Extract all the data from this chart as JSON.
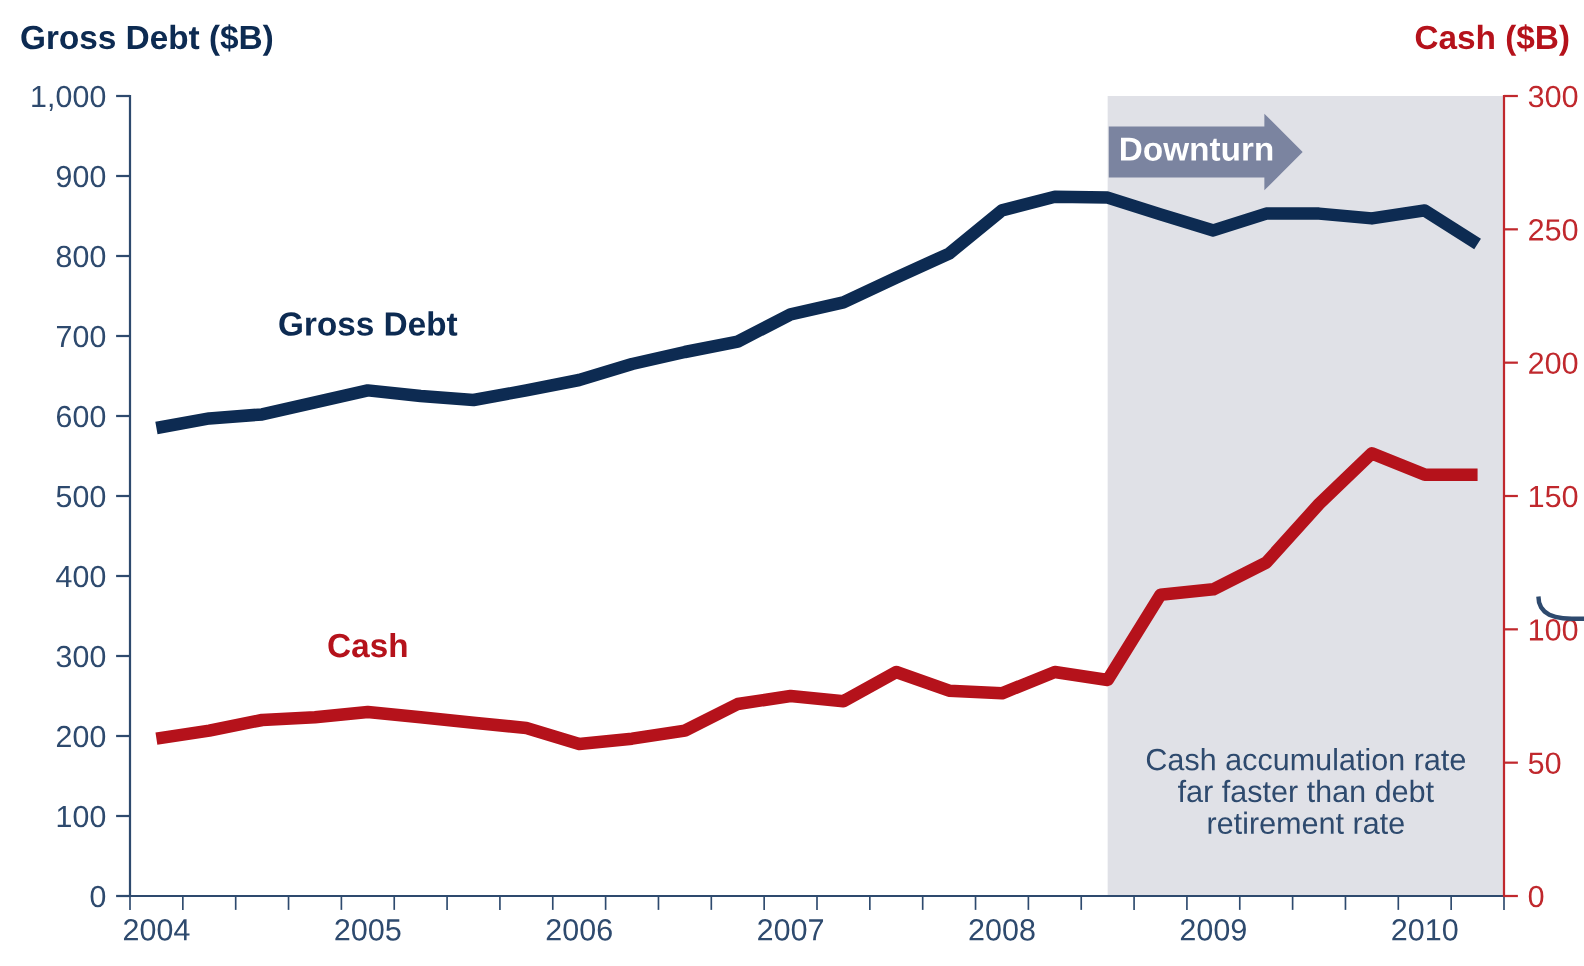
{
  "chart_data": {
    "type": "line",
    "ylabel": "Gross Debt ($B)",
    "y2label": "Cash ($B)",
    "x": [
      2004,
      2004.25,
      2004.5,
      2004.75,
      2005,
      2005.25,
      2005.5,
      2005.75,
      2006,
      2006.25,
      2006.5,
      2006.75,
      2007,
      2007.25,
      2007.5,
      2007.75,
      2008,
      2008.25,
      2008.5,
      2008.75,
      2009,
      2009.25,
      2009.5,
      2009.75,
      2010,
      2010.25
    ],
    "series": [
      {
        "name": "Gross Debt",
        "color": "#0d2b52",
        "values": [
          585,
          597,
          602,
          617,
          632,
          625,
          620,
          632,
          645,
          665,
          680,
          693,
          727,
          742,
          773,
          803,
          857,
          874,
          873,
          852,
          832,
          853,
          853,
          847,
          857,
          815
        ]
      },
      {
        "name": "Cash",
        "color": "#b5121b",
        "axis": "y2",
        "values": [
          59,
          62,
          66,
          67,
          69,
          67,
          65,
          63,
          57,
          59,
          62,
          72,
          75,
          73,
          84,
          77,
          76,
          84,
          81,
          113,
          115,
          125,
          147,
          166,
          158,
          158
        ]
      }
    ],
    "xlim": [
      2003.875,
      2010.375
    ],
    "xticks": [
      2004,
      2005,
      2006,
      2007,
      2008,
      2009,
      2010,
      {
        "value": 2003.875,
        "label": null
      },
      {
        "value": 2004.125,
        "label": null
      },
      {
        "value": 2004.375,
        "label": null
      },
      {
        "value": 2004.625,
        "label": null
      },
      {
        "value": 2004.875,
        "label": null
      },
      {
        "value": 2005.125,
        "label": null
      },
      {
        "value": 2005.375,
        "label": null
      },
      {
        "value": 2005.625,
        "label": null
      },
      {
        "value": 2005.875,
        "label": null
      },
      {
        "value": 2006.125,
        "label": null
      },
      {
        "value": 2006.375,
        "label": null
      },
      {
        "value": 2006.625,
        "label": null
      },
      {
        "value": 2006.875,
        "label": null
      },
      {
        "value": 2007.125,
        "label": null
      },
      {
        "value": 2007.375,
        "label": null
      },
      {
        "value": 2007.625,
        "label": null
      },
      {
        "value": 2007.875,
        "label": null
      },
      {
        "value": 2008.125,
        "label": null
      },
      {
        "value": 2008.375,
        "label": null
      },
      {
        "value": 2008.625,
        "label": null
      },
      {
        "value": 2008.875,
        "label": null
      },
      {
        "value": 2009.125,
        "label": null
      },
      {
        "value": 2009.375,
        "label": null
      },
      {
        "value": 2009.625,
        "label": null
      },
      {
        "value": 2009.875,
        "label": null
      },
      {
        "value": 2010.125,
        "label": null
      },
      {
        "value": 2010.375,
        "label": null
      }
    ],
    "ylim": [
      0,
      1000
    ],
    "yticks": [
      0,
      100,
      200,
      300,
      400,
      500,
      600,
      700,
      800,
      900,
      {
        "value": 1000,
        "label": "1,000"
      }
    ],
    "y2lim": [
      0,
      300
    ],
    "y2ticks": [
      0,
      50,
      100,
      150,
      200,
      250,
      300
    ],
    "bands": [
      {
        "axis": "x",
        "from": 2008.5,
        "to": 2010.375,
        "label": "Downturn",
        "color": "#e0e1e7"
      }
    ],
    "annotations": [
      "Cash accumulation rate\nfar faster than debt\nretirement rate"
    ],
    "grid": false,
    "legend": false,
    "marker": "none",
    "line_style": "solid"
  }
}
